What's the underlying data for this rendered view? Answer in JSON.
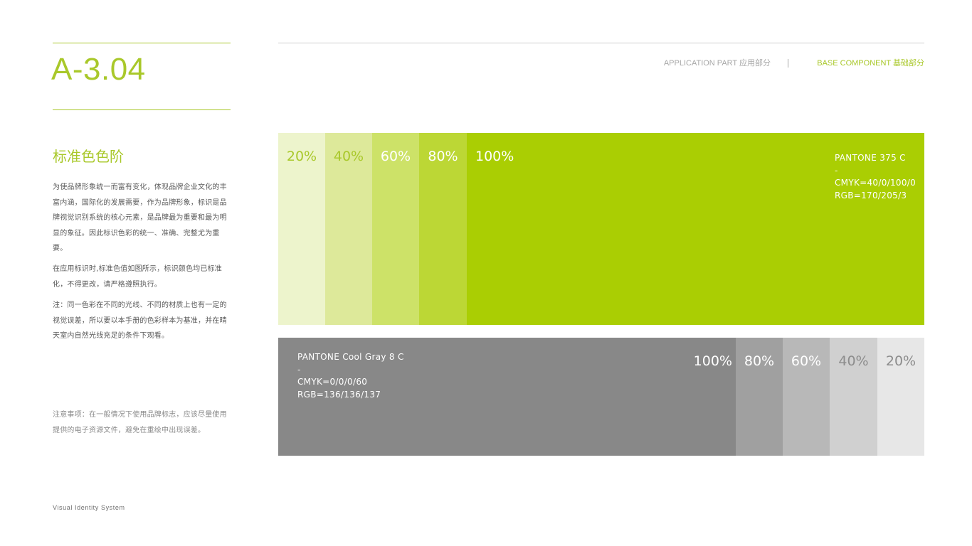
{
  "page": {
    "code": "A-3.04",
    "section_title": "标准色色阶",
    "paragraphs": [
      "为使品牌形象统一而富有变化，体现品牌企业文化的丰富内涵，国际化的发展需要，作为品牌形象，标识是品牌视觉识别系统的核心元素，是品牌最为重要和最为明显的象征。因此标识色彩的统一、准确、完整尤为重要。",
      "在应用标识时,标准色值如图所示，标识颜色均已标准化，不得更改，请严格遵照执行。",
      "注：同一色彩在不同的光线、不同的材质上也有一定的视觉误差，所以要以本手册的色彩样本为基准，并在晴天室内自然光线充足的条件下观看。"
    ],
    "note": "注意事项：在一般情况下使用品牌标志，应该尽量使用提供的电子资源文件，避免在重绘中出现误差。",
    "footer": "Visual Identity System"
  },
  "header": {
    "application_part": "APPLICATION PART 应用部分",
    "base_component": "BASE COMPONENT 基础部分"
  },
  "colors": {
    "brand_green": "#a9c82a",
    "gray": "#888888"
  },
  "green_scale": {
    "color_name": "PANTONE 375 C",
    "separator": "-",
    "cmyk": "CMYK=40/0/100/0",
    "rgb": "RGB=170/205/3",
    "tints": [
      {
        "label": "20%",
        "color": "#edf4cc"
      },
      {
        "label": "40%",
        "color": "#dde99a"
      },
      {
        "label": "60%",
        "color": "#cde268"
      },
      {
        "label": "80%",
        "color": "#bcd735"
      },
      {
        "label": "100%",
        "color": "#aace03"
      }
    ]
  },
  "gray_scale": {
    "color_name": "PANTONE Cool Gray 8 C",
    "separator": "-",
    "cmyk": "CMYK=0/0/0/60",
    "rgb": "RGB=136/136/137",
    "tints": [
      {
        "label": "100%",
        "color": "#888888"
      },
      {
        "label": "80%",
        "color": "#a0a0a0"
      },
      {
        "label": "60%",
        "color": "#b8b8b8"
      },
      {
        "label": "40%",
        "color": "#d0d0d0"
      },
      {
        "label": "20%",
        "color": "#e7e7e7"
      }
    ]
  }
}
